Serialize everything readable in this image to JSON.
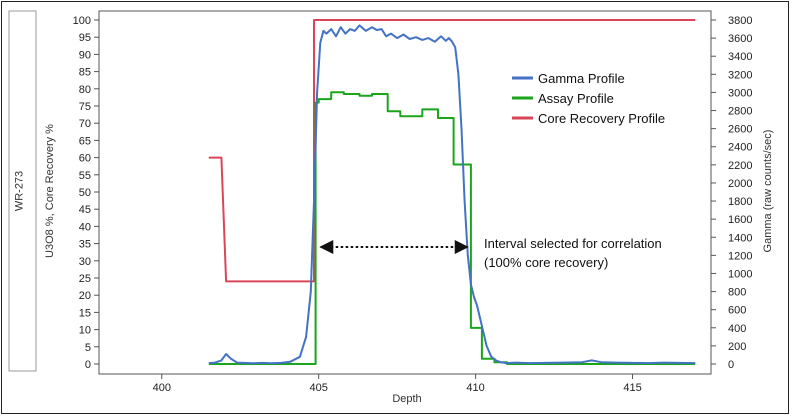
{
  "panel_label": "WR-273",
  "chart_data": {
    "type": "line",
    "xlabel": "Depth",
    "ylabel_left": "U3O8 %, Core Recovery %",
    "ylabel_right": "Gamma (raw counts/sec)",
    "xlim": [
      398,
      417.5
    ],
    "ylim_left": [
      0,
      100
    ],
    "ylim_right": [
      0,
      3800
    ],
    "x_ticks": [
      400,
      405,
      410,
      415
    ],
    "y_ticks_left": [
      0,
      5,
      10,
      15,
      20,
      25,
      30,
      35,
      40,
      45,
      50,
      55,
      60,
      65,
      70,
      75,
      80,
      85,
      90,
      95,
      100
    ],
    "y_ticks_right": [
      0,
      200,
      400,
      600,
      800,
      1000,
      1200,
      1400,
      1600,
      1800,
      2000,
      2200,
      2400,
      2600,
      2800,
      3000,
      3200,
      3400,
      3600,
      3800
    ],
    "grid": false,
    "legend_position": "top-right",
    "series": [
      {
        "name": "Gamma Profile",
        "axis": "right",
        "color": "#4472c4",
        "x": [
          401.5,
          401.7,
          401.9,
          402.05,
          402.2,
          402.4,
          402.6,
          402.9,
          403.2,
          403.5,
          403.8,
          404.1,
          404.4,
          404.6,
          404.75,
          404.85,
          404.95,
          405.05,
          405.15,
          405.25,
          405.4,
          405.55,
          405.7,
          405.85,
          406.0,
          406.15,
          406.3,
          406.5,
          406.7,
          406.85,
          407.0,
          407.15,
          407.3,
          407.5,
          407.7,
          407.9,
          408.1,
          408.3,
          408.5,
          408.7,
          408.9,
          409.05,
          409.15,
          409.25,
          409.35,
          409.45,
          409.55,
          409.65,
          409.75,
          409.85,
          409.95,
          410.05,
          410.2,
          410.35,
          410.5,
          410.65,
          410.8,
          411.0,
          411.3,
          411.7,
          412.2,
          412.8,
          413.4,
          413.7,
          414.0,
          414.5,
          415.0,
          415.5,
          416.0,
          416.5,
          417.0
        ],
        "values": [
          10,
          15,
          40,
          110,
          60,
          15,
          12,
          8,
          12,
          8,
          12,
          25,
          80,
          300,
          800,
          1800,
          3000,
          3550,
          3680,
          3650,
          3700,
          3620,
          3720,
          3650,
          3700,
          3680,
          3740,
          3680,
          3720,
          3690,
          3700,
          3620,
          3650,
          3600,
          3640,
          3590,
          3610,
          3580,
          3600,
          3560,
          3620,
          3570,
          3600,
          3560,
          3500,
          3200,
          2600,
          1800,
          1200,
          880,
          740,
          640,
          420,
          200,
          80,
          40,
          20,
          10,
          15,
          10,
          12,
          15,
          20,
          40,
          20,
          15,
          12,
          10,
          15,
          12,
          10
        ]
      },
      {
        "name": "Assay Profile",
        "axis": "left",
        "color": "#1aa51a",
        "x": [
          401.5,
          404.9,
          404.9,
          405.0,
          405.0,
          405.4,
          405.4,
          405.8,
          405.8,
          406.3,
          406.3,
          406.7,
          406.7,
          407.2,
          407.2,
          407.6,
          407.6,
          408.0,
          408.0,
          408.3,
          408.3,
          408.8,
          408.8,
          409.3,
          409.3,
          409.6,
          409.6,
          409.85,
          409.85,
          410.2,
          410.2,
          410.6,
          410.6,
          411.0,
          411.0,
          417.0
        ],
        "values": [
          0,
          0,
          76,
          76,
          77,
          77,
          79,
          79,
          78.5,
          78.5,
          78,
          78,
          78.5,
          78.5,
          73.5,
          73.5,
          72,
          72,
          72,
          72,
          74,
          74,
          71.5,
          71.5,
          58,
          58,
          58,
          58,
          10.5,
          10.5,
          1.5,
          1.5,
          0.5,
          0.5,
          0,
          0
        ]
      },
      {
        "name": "Core Recovery Profile",
        "axis": "left",
        "color": "#d9465a",
        "x": [
          401.5,
          401.9,
          401.9,
          402.05,
          402.05,
          404.85,
          404.85,
          417.0
        ],
        "values": [
          60,
          60,
          60,
          24,
          24,
          24,
          100,
          100
        ]
      }
    ],
    "annotation": {
      "lines": [
        "Interval selected for correlation",
        "(100% core recovery)"
      ],
      "range": [
        405.0,
        409.8
      ],
      "y_value": 34
    }
  }
}
